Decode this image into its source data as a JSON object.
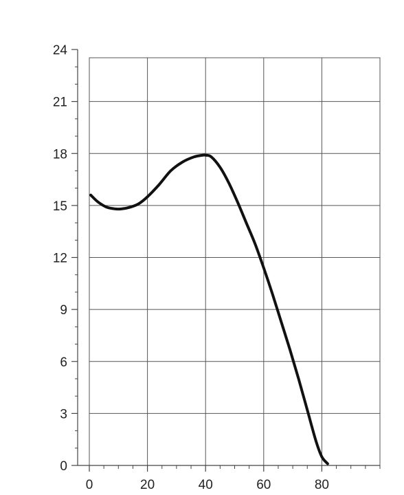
{
  "chart_data": {
    "type": "line",
    "title": "",
    "xlabel": "",
    "ylabel": "",
    "xlim": [
      0,
      100
    ],
    "ylim": [
      0,
      24
    ],
    "x_ticks": [
      0,
      20,
      40,
      60,
      80
    ],
    "y_ticks": [
      0,
      3,
      6,
      9,
      12,
      15,
      18,
      21,
      24
    ],
    "x_tick_labels": [
      "0",
      "20",
      "40",
      "60",
      "80"
    ],
    "y_tick_labels": [
      "0",
      "3",
      "6",
      "9",
      "12",
      "15",
      "18",
      "21",
      "24"
    ],
    "grid": true,
    "legend": "none",
    "series": [
      {
        "color": "#111111",
        "x": [
          0.5,
          3,
          6,
          9,
          11,
          14,
          17,
          20,
          24,
          28,
          32,
          36,
          39,
          40,
          42,
          45,
          48,
          51,
          54,
          57,
          60,
          63,
          66,
          69,
          72,
          75,
          78,
          80,
          82
        ],
        "y": [
          15.6,
          15.2,
          14.9,
          14.8,
          14.8,
          14.9,
          15.1,
          15.5,
          16.2,
          17.0,
          17.5,
          17.8,
          17.9,
          17.9,
          17.8,
          17.2,
          16.3,
          15.2,
          14.0,
          12.8,
          11.4,
          9.9,
          8.3,
          6.7,
          5.0,
          3.2,
          1.4,
          0.5,
          0.1
        ]
      }
    ]
  }
}
